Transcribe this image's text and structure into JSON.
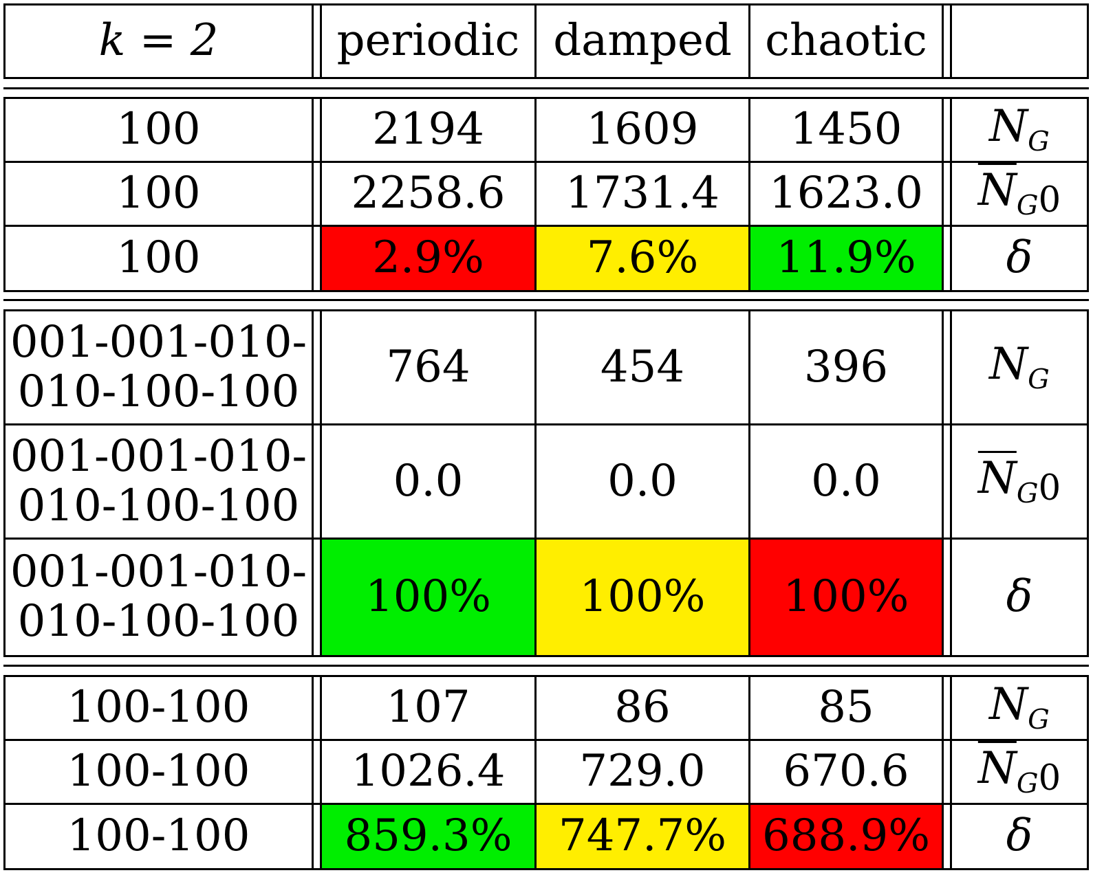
{
  "header": {
    "row_label": "k = 2",
    "columns": [
      "periodic",
      "damped",
      "chaotic"
    ],
    "quantity_label": ""
  },
  "colors": {
    "good": "#00ee00",
    "mid": "#ffee00",
    "bad": "#ff0000"
  },
  "quantities": {
    "NG": {
      "base": "N",
      "sub": "G"
    },
    "NG0": {
      "base": "N",
      "sub": "G",
      "sub2": "0"
    },
    "delta": {
      "symbol": "δ"
    }
  },
  "groups": [
    {
      "rows": [
        {
          "label": "100",
          "values": [
            "2194",
            "1609",
            "1450"
          ],
          "quantity": "NG",
          "colors": [
            "",
            "",
            ""
          ]
        },
        {
          "label": "100",
          "values": [
            "2258.6",
            "1731.4",
            "1623.0"
          ],
          "quantity": "NG0",
          "colors": [
            "",
            "",
            ""
          ]
        },
        {
          "label": "100",
          "values": [
            "2.9%",
            "7.6%",
            "11.9%"
          ],
          "quantity": "delta",
          "colors": [
            "bad",
            "mid",
            "good"
          ]
        }
      ]
    },
    {
      "rows": [
        {
          "label": "001-001-010-\n010-100-100",
          "values": [
            "764",
            "454",
            "396"
          ],
          "quantity": "NG",
          "colors": [
            "",
            "",
            ""
          ]
        },
        {
          "label": "001-001-010-\n010-100-100",
          "values": [
            "0.0",
            "0.0",
            "0.0"
          ],
          "quantity": "NG0",
          "colors": [
            "",
            "",
            ""
          ]
        },
        {
          "label": "001-001-010-\n010-100-100",
          "values": [
            "100%",
            "100%",
            "100%"
          ],
          "quantity": "delta",
          "colors": [
            "good",
            "mid",
            "bad"
          ]
        }
      ]
    },
    {
      "rows": [
        {
          "label": "100-100",
          "values": [
            "107",
            "86",
            "85"
          ],
          "quantity": "NG",
          "colors": [
            "",
            "",
            ""
          ]
        },
        {
          "label": "100-100",
          "values": [
            "1026.4",
            "729.0",
            "670.6"
          ],
          "quantity": "NG0",
          "colors": [
            "",
            "",
            ""
          ]
        },
        {
          "label": "100-100",
          "values": [
            "859.3%",
            "747.7%",
            "688.9%"
          ],
          "quantity": "delta",
          "colors": [
            "good",
            "mid",
            "bad"
          ]
        }
      ]
    }
  ]
}
